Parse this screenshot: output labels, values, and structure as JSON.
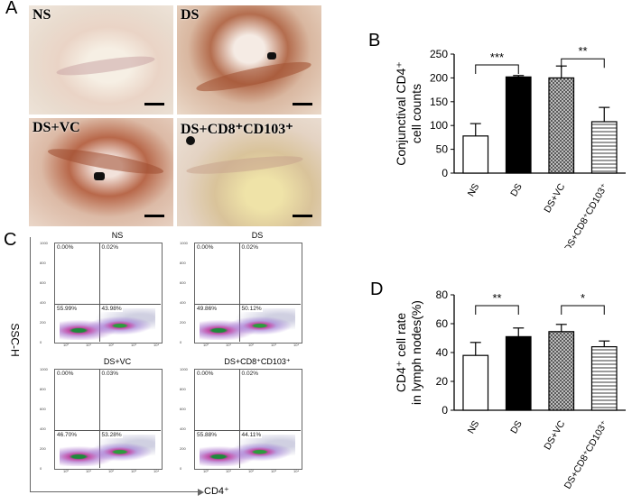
{
  "panels": {
    "a": "A",
    "b": "B",
    "c": "C",
    "d": "D"
  },
  "histology": [
    {
      "label": "NS"
    },
    {
      "label": "DS"
    },
    {
      "label": "DS+VC"
    },
    {
      "label": "DS+CD8⁺CD103⁺"
    }
  ],
  "flow": {
    "y_axis": "SSC-H",
    "x_axis": "CD4⁺",
    "plots": [
      {
        "title": "NS",
        "ul": "0.00%",
        "ur": "0.02%",
        "ll": "55.99%",
        "lr": "43.98%"
      },
      {
        "title": "DS",
        "ul": "0.00%",
        "ur": "0.02%",
        "ll": "49.86%",
        "lr": "50.12%"
      },
      {
        "title": "DS+VC",
        "ul": "0.00%",
        "ur": "0.03%",
        "ll": "46.70%",
        "lr": "53.28%"
      },
      {
        "title": "DS+CD8⁺CD103⁺",
        "ul": "0.00%",
        "ur": "0.02%",
        "ll": "55.88%",
        "lr": "44.11%"
      }
    ],
    "y_ticks": [
      "1000",
      "800",
      "600",
      "400",
      "200",
      "0"
    ],
    "x_ticks": [
      "10⁰",
      "10¹",
      "10²",
      "10³",
      "10⁴"
    ]
  },
  "chart_data": [
    {
      "type": "bar",
      "panel": "B",
      "categories": [
        "NS",
        "DS",
        "DS+VC",
        "DS+CD8⁺CD103⁺"
      ],
      "values": [
        78,
        202,
        200,
        108
      ],
      "errors": [
        26,
        3,
        25,
        30
      ],
      "ylabel_line1": "Conjunctival CD4⁺",
      "ylabel_line2": "cell counts",
      "ylim": [
        0,
        250
      ],
      "yticks": [
        0,
        50,
        100,
        150,
        200,
        250
      ],
      "fills": [
        "white",
        "black",
        "crosshatch",
        "horizontal"
      ],
      "significance": [
        {
          "from": 0,
          "to": 1,
          "label": "***"
        },
        {
          "from": 2,
          "to": 3,
          "label": "**"
        }
      ]
    },
    {
      "type": "bar",
      "panel": "D",
      "categories": [
        "NS",
        "DS",
        "DS+VC",
        "DS+CD8⁺CD103⁺"
      ],
      "values": [
        38,
        51,
        54.5,
        44
      ],
      "errors": [
        9,
        6,
        5,
        4
      ],
      "ylabel_line1": "CD4⁺ cell rate",
      "ylabel_line2": "in lymph nodes(%)",
      "ylim": [
        0,
        80
      ],
      "yticks": [
        0,
        20,
        40,
        60,
        80
      ],
      "fills": [
        "white",
        "black",
        "crosshatch",
        "horizontal"
      ],
      "significance": [
        {
          "from": 0,
          "to": 1,
          "label": "**"
        },
        {
          "from": 2,
          "to": 3,
          "label": "*"
        }
      ]
    }
  ]
}
